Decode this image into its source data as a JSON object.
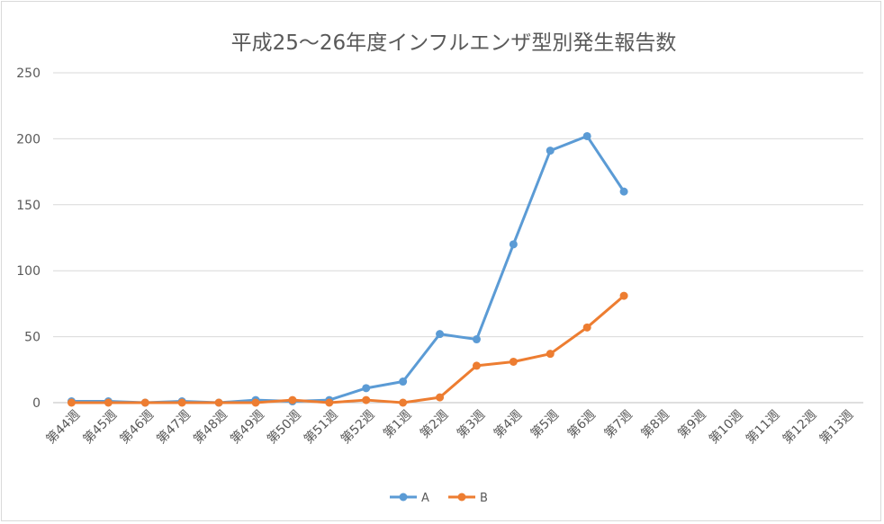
{
  "chart_data": {
    "type": "line",
    "title": "平成25～26年度インフルエンザ型別発生報告数",
    "xlabel": "",
    "ylabel": "",
    "categories": [
      "第44週",
      "第45週",
      "第46週",
      "第47週",
      "第48週",
      "第49週",
      "第50週",
      "第51週",
      "第52週",
      "第1週",
      "第2週",
      "第3週",
      "第4週",
      "第5週",
      "第6週",
      "第7週",
      "第8週",
      "第9週",
      "第10週",
      "第11週",
      "第12週",
      "第13週"
    ],
    "ylim": [
      0,
      250
    ],
    "yticks": [
      0,
      50,
      100,
      150,
      200,
      250
    ],
    "grid": true,
    "legend": "bottom",
    "series": [
      {
        "name": "A",
        "color": "#5b9bd5",
        "values": [
          1,
          1,
          0,
          1,
          0,
          2,
          1,
          2,
          11,
          16,
          52,
          48,
          120,
          191,
          202,
          160,
          null,
          null,
          null,
          null,
          null,
          null
        ]
      },
      {
        "name": "B",
        "color": "#ed7d31",
        "values": [
          0,
          0,
          0,
          0,
          0,
          0,
          2,
          0,
          2,
          0,
          4,
          28,
          31,
          37,
          57,
          81,
          null,
          null,
          null,
          null,
          null,
          null
        ]
      }
    ]
  }
}
